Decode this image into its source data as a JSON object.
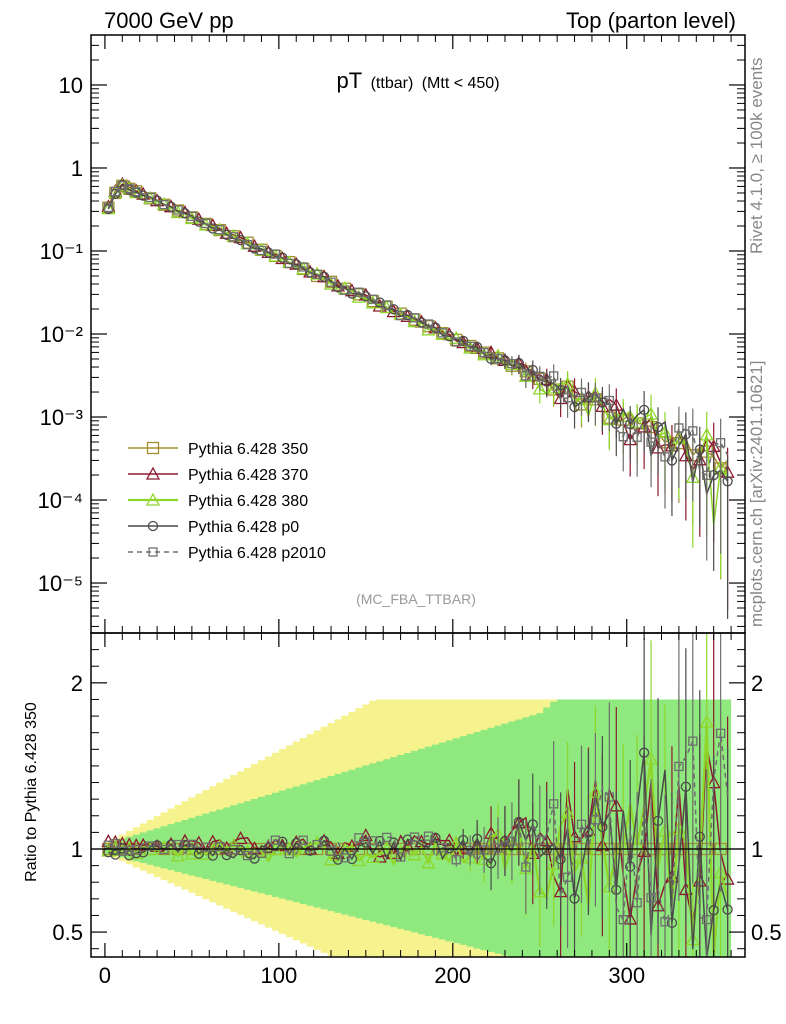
{
  "chart_data": {
    "type": "line",
    "header": {
      "left": "7000 GeV pp",
      "right": "Top (parton level)"
    },
    "title": {
      "main": "pT",
      "sub": "(ttbar)",
      "cut": "(Mtt < 450)"
    },
    "analysis_tag": "(MC_FBA_TTBAR)",
    "side_labels": {
      "rivet": "Rivet 4.1.0, ≥ 100k events",
      "mcplots": "mcplots.cern.ch [arXiv:2401.10621]"
    },
    "xlim": [
      -8,
      368
    ],
    "main_ylim_log": [
      2.5e-06,
      40
    ],
    "ratio_ylim": [
      0.35,
      2.3
    ],
    "xticks": [
      0,
      100,
      200,
      300
    ],
    "main_yticks": [
      {
        "value": 10,
        "label": "10"
      },
      {
        "value": 1,
        "label": "1"
      },
      {
        "value": 0.1,
        "label": "10⁻¹"
      },
      {
        "value": 0.01,
        "label": "10⁻²"
      },
      {
        "value": 0.001,
        "label": "10⁻³"
      },
      {
        "value": 0.0001,
        "label": "10⁻⁴"
      },
      {
        "value": 1e-05,
        "label": "10⁻⁵"
      }
    ],
    "ratio_yticks": [
      {
        "value": 0.5,
        "label": "0.5"
      },
      {
        "value": 1,
        "label": "1"
      },
      {
        "value": 2,
        "label": "2"
      }
    ],
    "ratio_ylabel": "Ratio to Pythia 6.428 350",
    "bin_width": 4,
    "n_bins": 90,
    "spectrum": {
      "norm": 0.62,
      "peak_x": 10,
      "slope": 0.0223,
      "rise_start": 0.35
    },
    "ratio_band": {
      "inner_color": "#7de87d",
      "outer_color": "#f5f07a",
      "width_growth": 0.0035
    },
    "series": [
      {
        "name": "Pythia 6.428 350",
        "color": "#a09030",
        "marker": "square",
        "dash": "",
        "offset": 0.0,
        "seed": 11
      },
      {
        "name": "Pythia 6.428 370",
        "color": "#8b1a2e",
        "marker": "triangle",
        "dash": "",
        "offset": 0.02,
        "seed": 23
      },
      {
        "name": "Pythia 6.428 380",
        "color": "#8ed62a",
        "marker": "triangle",
        "dash": "",
        "offset": -0.02,
        "seed": 37
      },
      {
        "name": "Pythia 6.428 p0",
        "color": "#4a4a4a",
        "marker": "circle",
        "dash": "",
        "offset": -0.01,
        "seed": 51
      },
      {
        "name": "Pythia 6.428 p2010",
        "color": "#6e6e6e",
        "marker": "square-small",
        "dash": "5,4",
        "offset": 0.01,
        "seed": 67
      }
    ]
  }
}
